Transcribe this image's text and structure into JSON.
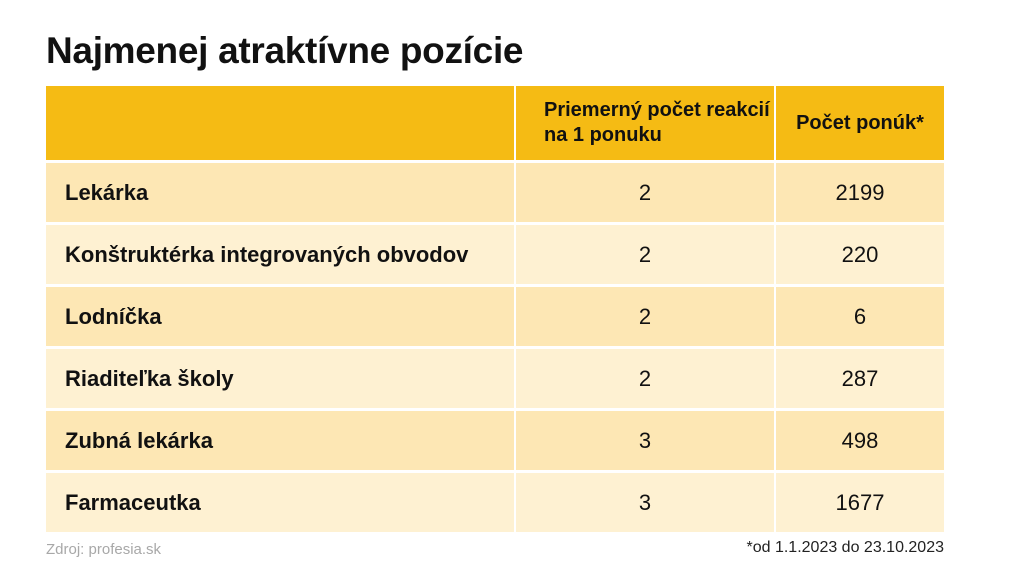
{
  "chart_data": {
    "type": "table",
    "title": "Najmenej atraktívne pozície",
    "columns": [
      "",
      "Priemerný počet reakcií na 1 ponuku",
      "Počet ponúk*"
    ],
    "rows": [
      {
        "name": "Lekárka",
        "avg_reactions": "2",
        "offers": "2199"
      },
      {
        "name": "Konštruktérka integrovaných obvodov",
        "avg_reactions": "2",
        "offers": "220"
      },
      {
        "name": "Lodníčka",
        "avg_reactions": "2",
        "offers": "6"
      },
      {
        "name": "Riaditeľka školy",
        "avg_reactions": "2",
        "offers": "287"
      },
      {
        "name": "Zubná lekárka",
        "avg_reactions": "3",
        "offers": "498"
      },
      {
        "name": "Farmaceutka",
        "avg_reactions": "3",
        "offers": "1677"
      }
    ],
    "source": "Zdroj: profesia.sk",
    "footnote": "*od 1.1.2023 do 23.10.2023"
  },
  "colors": {
    "header_bg": "#f5bb14",
    "row_odd_bg": "#fde7b4",
    "row_even_bg": "#fef1d2"
  }
}
